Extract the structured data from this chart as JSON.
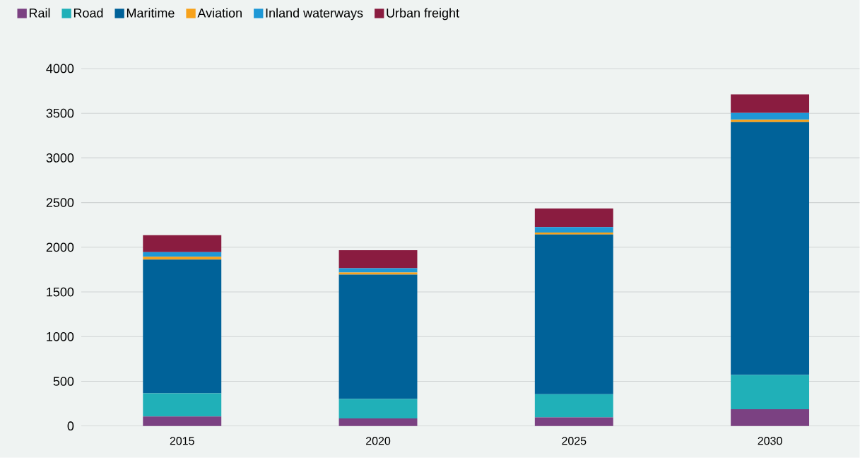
{
  "chart_data": {
    "type": "bar",
    "stacked": true,
    "categories": [
      "2015",
      "2020",
      "2025",
      "2030"
    ],
    "series": [
      {
        "name": "Rail",
        "color": "#7b4182",
        "values": [
          107,
          84,
          97,
          187
        ]
      },
      {
        "name": "Road",
        "color": "#20b0b8",
        "values": [
          258,
          219,
          258,
          385
        ]
      },
      {
        "name": "Maritime",
        "color": "#006299",
        "values": [
          1497,
          1391,
          1789,
          2828
        ]
      },
      {
        "name": "Aviation",
        "color": "#f7a21b",
        "values": [
          32,
          24,
          20,
          26
        ]
      },
      {
        "name": "Inland waterways",
        "color": "#1e98d6",
        "values": [
          51,
          47,
          63,
          77
        ]
      },
      {
        "name": "Urban freight",
        "color": "#8a1c40",
        "values": [
          190,
          203,
          206,
          208
        ]
      }
    ],
    "ylim": [
      0,
      4000
    ],
    "yticks": [
      0,
      500,
      1000,
      1500,
      2000,
      2500,
      3000,
      3500,
      4000
    ],
    "grid": "y",
    "legend": "top left"
  }
}
